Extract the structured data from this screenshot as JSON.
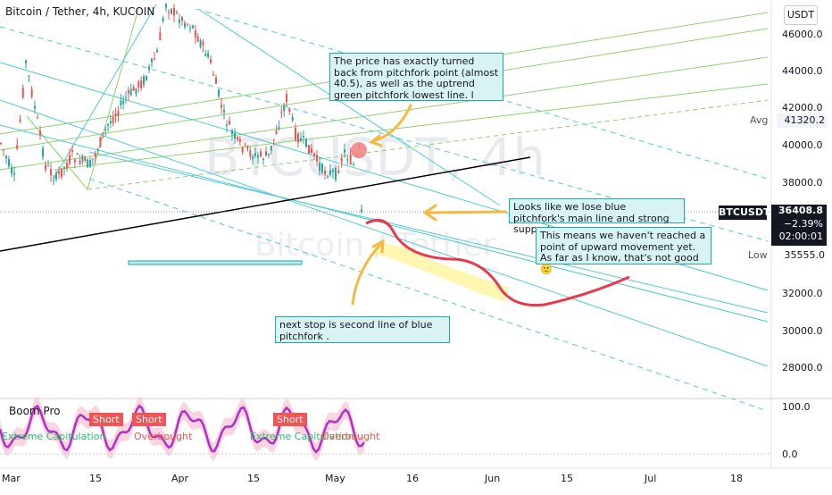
{
  "header": {
    "title": "Bitcoin / Tether, 4h, KUCOIN",
    "currency": "USDT"
  },
  "price_axis": {
    "ticks": [
      "46000.0",
      "44000.0",
      "42000.0",
      "40000.0",
      "38000.0",
      "32000.0",
      "30000.0",
      "28000.0"
    ],
    "avg_label": "Avg",
    "avg_value": "41320.2",
    "low_label": "Low",
    "low_value": "35555.0",
    "symbol": "BTCUSDT",
    "last_price": "36408.8",
    "change": "−2.39%",
    "countdown": "02:00:01"
  },
  "watermark": {
    "symbol": "BTCUSDT, 4h",
    "name": "Bitcoin / Tether"
  },
  "notes": {
    "note1": "The price has exactly turned back from pitchfork point (almost 40.5), as well as the uptrend green pitchfork lowest line. l",
    "note2": "Looks like we lose blue pitchfork's main line and strong support",
    "note3": "This means we haven't reached a point of upward movement yet. As far as I know, that's not good🙁",
    "note4": "next stop is second line of blue pitchfork ."
  },
  "indicator": {
    "name": "Boom Pro",
    "short1": "Short",
    "short2": "Short",
    "short3": "Short",
    "text1": "Extreme Capitulation",
    "text2": "Overbought",
    "text3": "Extreme Capitulation",
    "text4": "Overbought",
    "axis_top": "100.0",
    "axis_bottom": "0.0"
  },
  "time_axis": {
    "labels": [
      "Mar",
      "15",
      "Apr",
      "15",
      "May",
      "16",
      "Jun",
      "15",
      "Jul",
      "18"
    ]
  },
  "colors": {
    "up": "#26a69a",
    "down": "#ef5350",
    "pitchfork_blue": "#4ecbd3",
    "pitchfork_green": "#8cd46b",
    "note_bg": "#d9f3f3",
    "highlight": "#fff59d",
    "arrow": "#f5b942",
    "projection": "#e83a4a"
  }
}
